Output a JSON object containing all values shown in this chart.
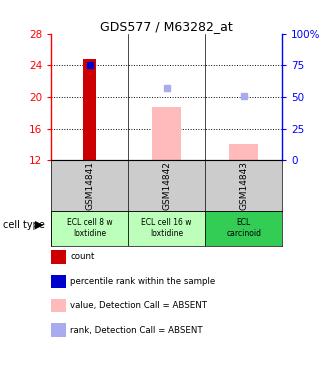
{
  "title": "GDS577 / M63282_at",
  "samples": [
    "GSM14841",
    "GSM14842",
    "GSM14843"
  ],
  "cell_types": [
    "ECL cell 8 w\nloxtidine",
    "ECL cell 16 w\nloxtidine",
    "ECL\ncarcinoid"
  ],
  "cell_type_colors": [
    "#bbffbb",
    "#bbffbb",
    "#33cc55"
  ],
  "bar_bottom": 12,
  "ylim_left": [
    12,
    28
  ],
  "ylim_right": [
    0,
    100
  ],
  "yticks_left": [
    12,
    16,
    20,
    24,
    28
  ],
  "yticks_right": [
    0,
    25,
    50,
    75,
    100
  ],
  "ytick_labels_right": [
    "0",
    "25",
    "50",
    "75",
    "100%"
  ],
  "count_values": [
    24.8,
    null,
    null
  ],
  "count_color": "#cc0000",
  "percentile_rank_values": [
    24.1,
    null,
    null
  ],
  "percentile_rank_color": "#0000cc",
  "absent_value_values": [
    null,
    18.8,
    14.1
  ],
  "absent_value_color": "#ffbbbb",
  "absent_rank_values": [
    null,
    57.0,
    51.0
  ],
  "absent_rank_color": "#aaaaee",
  "background_label": "#cccccc",
  "legend_labels": [
    "count",
    "percentile rank within the sample",
    "value, Detection Call = ABSENT",
    "rank, Detection Call = ABSENT"
  ],
  "legend_colors": [
    "#cc0000",
    "#0000cc",
    "#ffbbbb",
    "#aaaaee"
  ],
  "legend_marker_sizes": [
    8,
    8,
    8,
    8
  ]
}
